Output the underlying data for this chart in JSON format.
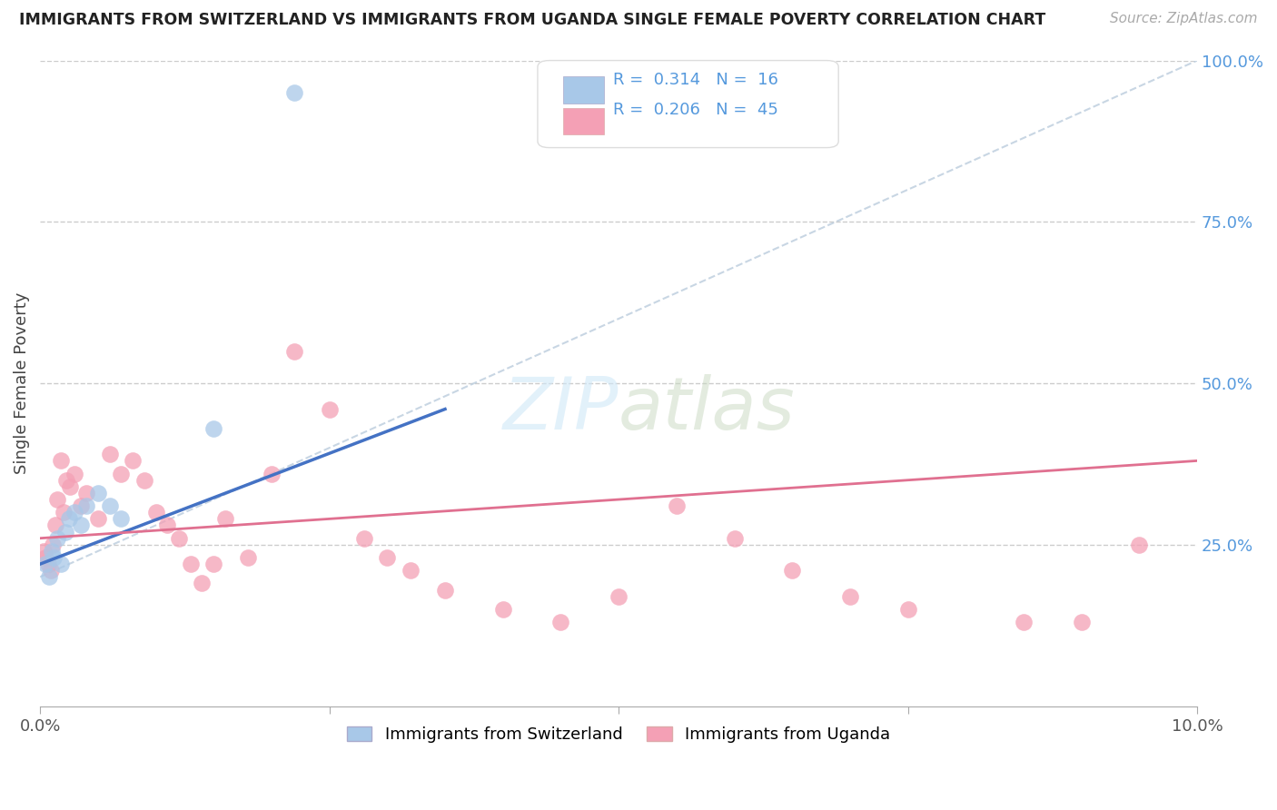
{
  "title": "IMMIGRANTS FROM SWITZERLAND VS IMMIGRANTS FROM UGANDA SINGLE FEMALE POVERTY CORRELATION CHART",
  "source": "Source: ZipAtlas.com",
  "ylabel": "Single Female Poverty",
  "legend_label_1": "Immigrants from Switzerland",
  "legend_label_2": "Immigrants from Uganda",
  "R1": 0.314,
  "N1": 16,
  "R2": 0.206,
  "N2": 45,
  "xlim": [
    0.0,
    10.0
  ],
  "ylim": [
    0.0,
    100.0
  ],
  "color_swiss": "#a8c8e8",
  "color_uganda": "#f4a0b5",
  "color_swiss_line": "#4472c4",
  "color_uganda_line": "#e07090",
  "color_right_axis": "#5599dd",
  "color_grid": "#cccccc",
  "watermark_color": "#d0e8f8",
  "swiss_x": [
    0.05,
    0.08,
    0.1,
    0.12,
    0.15,
    0.18,
    0.22,
    0.25,
    0.3,
    0.35,
    0.4,
    0.5,
    0.6,
    0.7,
    1.5,
    2.2
  ],
  "swiss_y": [
    22,
    20,
    24,
    23,
    26,
    22,
    27,
    29,
    30,
    28,
    31,
    33,
    31,
    29,
    43,
    95
  ],
  "swiss_trend_x": [
    0.0,
    3.5
  ],
  "swiss_trend_y": [
    22.0,
    46.0
  ],
  "uganda_x": [
    0.03,
    0.05,
    0.07,
    0.09,
    0.11,
    0.13,
    0.15,
    0.18,
    0.2,
    0.23,
    0.26,
    0.3,
    0.35,
    0.4,
    0.5,
    0.6,
    0.7,
    0.8,
    0.9,
    1.0,
    1.1,
    1.2,
    1.4,
    1.5,
    1.6,
    1.8,
    2.0,
    2.2,
    2.5,
    3.0,
    3.2,
    3.5,
    4.0,
    4.5,
    5.0,
    5.5,
    6.0,
    6.5,
    7.0,
    7.5,
    8.5,
    9.0,
    9.5,
    2.8,
    1.3
  ],
  "uganda_y": [
    24,
    23,
    22,
    21,
    25,
    28,
    32,
    38,
    30,
    35,
    34,
    36,
    31,
    33,
    29,
    39,
    36,
    38,
    35,
    30,
    28,
    26,
    19,
    22,
    29,
    23,
    36,
    55,
    46,
    23,
    21,
    18,
    15,
    13,
    17,
    31,
    26,
    21,
    17,
    15,
    13,
    13,
    25,
    26,
    22
  ],
  "uganda_trend_x": [
    0.0,
    10.0
  ],
  "uganda_trend_y": [
    26.0,
    38.0
  ]
}
